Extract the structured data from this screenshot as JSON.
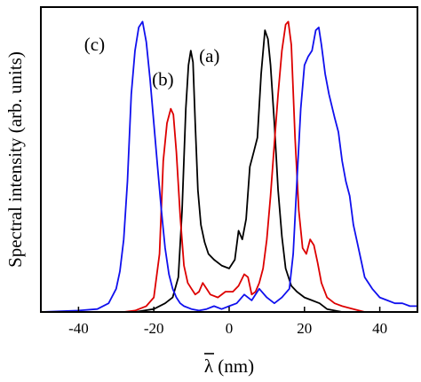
{
  "chart_data": {
    "type": "line",
    "xlabel": "λ (nm)",
    "ylabel": "Spectral intensity (arb. units)",
    "xlim": [
      -50,
      50
    ],
    "ylim": [
      0,
      1.05
    ],
    "x_ticks": [
      -40,
      -20,
      0,
      20,
      40
    ],
    "grid": false,
    "legend": "none",
    "series": [
      {
        "name": "(a)",
        "color": "#000000",
        "x": [
          -50,
          -25,
          -20,
          -17,
          -15,
          -13.5,
          -12.5,
          -11.5,
          -10.8,
          -10.2,
          -9.6,
          -9,
          -8.3,
          -7.5,
          -6.5,
          -5.5,
          -4,
          -2,
          0,
          1.5,
          2.5,
          3.5,
          4.5,
          5.5,
          6.5,
          7.5,
          8.5,
          9.5,
          10.3,
          11,
          12,
          13,
          14,
          15,
          16.5,
          18,
          20,
          22,
          24,
          26,
          28,
          30,
          50
        ],
        "y": [
          0,
          0,
          0.01,
          0.03,
          0.05,
          0.12,
          0.35,
          0.7,
          0.85,
          0.9,
          0.86,
          0.65,
          0.42,
          0.3,
          0.24,
          0.2,
          0.18,
          0.16,
          0.15,
          0.18,
          0.28,
          0.25,
          0.32,
          0.5,
          0.55,
          0.6,
          0.82,
          0.97,
          0.94,
          0.85,
          0.65,
          0.42,
          0.26,
          0.15,
          0.09,
          0.07,
          0.05,
          0.04,
          0.03,
          0.01,
          0.005,
          0,
          0
        ]
      },
      {
        "name": "(b)",
        "color": "#dd0000",
        "x": [
          -50,
          -28,
          -25,
          -22,
          -20,
          -18.5,
          -17.5,
          -16.5,
          -15.5,
          -14.8,
          -14,
          -13,
          -12,
          -11,
          -10,
          -9,
          -8,
          -7,
          -6,
          -5,
          -3,
          -1,
          1,
          2.5,
          4,
          5,
          6,
          7,
          8,
          9,
          10,
          11,
          12,
          13,
          14,
          15,
          15.7,
          16.5,
          17.5,
          18.5,
          19.5,
          20.5,
          21.5,
          22.5,
          23.5,
          24.5,
          26,
          28,
          30,
          33,
          36,
          50
        ],
        "y": [
          0,
          0,
          0.005,
          0.02,
          0.05,
          0.2,
          0.52,
          0.65,
          0.7,
          0.68,
          0.55,
          0.33,
          0.16,
          0.1,
          0.08,
          0.06,
          0.07,
          0.1,
          0.08,
          0.06,
          0.05,
          0.07,
          0.07,
          0.09,
          0.13,
          0.12,
          0.06,
          0.07,
          0.1,
          0.15,
          0.25,
          0.4,
          0.58,
          0.75,
          0.9,
          0.99,
          1.0,
          0.92,
          0.6,
          0.35,
          0.22,
          0.2,
          0.25,
          0.23,
          0.17,
          0.1,
          0.05,
          0.03,
          0.02,
          0.01,
          0,
          0
        ]
      },
      {
        "name": "(c)",
        "color": "#1010ee",
        "x": [
          -50,
          -40,
          -35,
          -32,
          -30,
          -29,
          -28,
          -27,
          -26,
          -25,
          -24,
          -23,
          -22,
          -21,
          -20,
          -19,
          -18,
          -17,
          -16,
          -15,
          -14,
          -13,
          -12,
          -10,
          -8,
          -6,
          -4,
          -2,
          0,
          2,
          4,
          6,
          8,
          10,
          12,
          14,
          16,
          17,
          18,
          19,
          20,
          21,
          22,
          23,
          23.8,
          24.5,
          25.5,
          26.5,
          28,
          29,
          30,
          31,
          32,
          33,
          34,
          35,
          36,
          38,
          40,
          42,
          44,
          46,
          48,
          50
        ],
        "y": [
          0.0,
          0.005,
          0.01,
          0.03,
          0.08,
          0.14,
          0.25,
          0.45,
          0.75,
          0.9,
          0.98,
          1.0,
          0.93,
          0.8,
          0.65,
          0.5,
          0.35,
          0.22,
          0.13,
          0.08,
          0.05,
          0.03,
          0.02,
          0.01,
          0.005,
          0.01,
          0.02,
          0.01,
          0.02,
          0.03,
          0.06,
          0.04,
          0.08,
          0.05,
          0.03,
          0.05,
          0.08,
          0.2,
          0.45,
          0.7,
          0.85,
          0.88,
          0.9,
          0.97,
          0.98,
          0.92,
          0.82,
          0.75,
          0.67,
          0.62,
          0.52,
          0.45,
          0.4,
          0.3,
          0.24,
          0.18,
          0.12,
          0.08,
          0.05,
          0.04,
          0.03,
          0.03,
          0.02,
          0.02
        ]
      }
    ],
    "series_labels": [
      {
        "text": "(a)",
        "x": -8,
        "y": 0.86
      },
      {
        "text": "(b)",
        "x": -20.5,
        "y": 0.78
      },
      {
        "text": "(c)",
        "x": -38.5,
        "y": 0.9
      }
    ]
  }
}
